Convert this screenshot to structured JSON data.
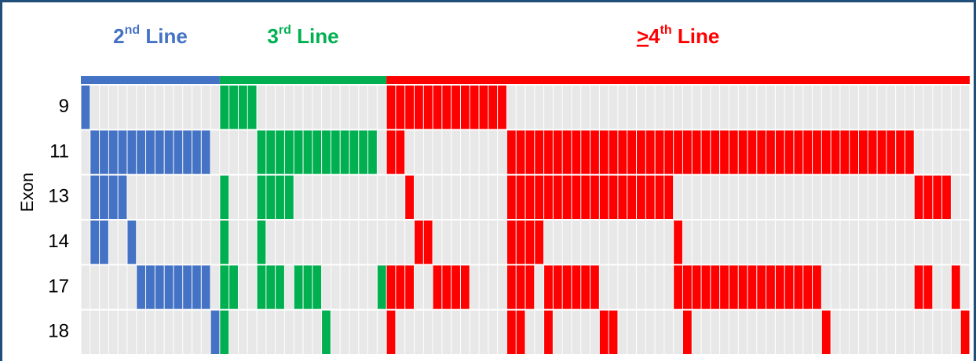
{
  "chart_data": {
    "type": "heatmap",
    "y_label": "Exon",
    "xlim": [
      0,
      96
    ],
    "groups": [
      {
        "title_parts": [
          {
            "text": "2"
          },
          {
            "text": "nd",
            "sup": true
          },
          {
            "text": " Line"
          }
        ],
        "color": "#4472c4",
        "columns": 15
      },
      {
        "title_parts": [
          {
            "text": "3"
          },
          {
            "text": "rd",
            "sup": true
          },
          {
            "text": " Line"
          }
        ],
        "color": "#00b050",
        "columns": 18
      },
      {
        "title_parts": [
          {
            "text": ">",
            "underline": true
          },
          {
            "text": "4"
          },
          {
            "text": "th",
            "sup": true
          },
          {
            "text": " Line"
          }
        ],
        "color": "#ff0000",
        "columns": 63
      }
    ],
    "rows": [
      {
        "label": "9",
        "cells": [
          0,
          15,
          16,
          17,
          18,
          33,
          34,
          35,
          36,
          37,
          38,
          39,
          40,
          41,
          42,
          43,
          44,
          45
        ]
      },
      {
        "label": "11",
        "cells": [
          1,
          2,
          3,
          4,
          5,
          6,
          7,
          8,
          9,
          10,
          11,
          12,
          13,
          19,
          20,
          21,
          22,
          23,
          24,
          25,
          26,
          27,
          28,
          29,
          30,
          31,
          33,
          34,
          46,
          47,
          48,
          49,
          50,
          51,
          52,
          53,
          54,
          55,
          56,
          57,
          58,
          59,
          60,
          61,
          62,
          63,
          64,
          65,
          66,
          67,
          68,
          69,
          70,
          71,
          72,
          73,
          74,
          75,
          76,
          77,
          78,
          79,
          80,
          81,
          82,
          83,
          84,
          85,
          86,
          87,
          88,
          89
        ]
      },
      {
        "label": "13",
        "cells": [
          1,
          2,
          3,
          4,
          15,
          19,
          20,
          21,
          22,
          35,
          46,
          47,
          48,
          49,
          50,
          51,
          52,
          53,
          54,
          55,
          56,
          57,
          58,
          59,
          60,
          61,
          62,
          63,
          90,
          91,
          92,
          93
        ]
      },
      {
        "label": "14",
        "cells": [
          1,
          2,
          5,
          15,
          19,
          36,
          37,
          46,
          47,
          48,
          49,
          64
        ]
      },
      {
        "label": "17",
        "cells": [
          6,
          7,
          8,
          9,
          10,
          11,
          12,
          13,
          15,
          16,
          19,
          20,
          21,
          23,
          24,
          25,
          32,
          33,
          34,
          35,
          38,
          39,
          40,
          41,
          46,
          47,
          48,
          50,
          51,
          52,
          53,
          54,
          55,
          64,
          65,
          66,
          67,
          68,
          69,
          70,
          71,
          72,
          73,
          74,
          75,
          76,
          77,
          78,
          79,
          90,
          91,
          94
        ]
      },
      {
        "label": "18",
        "cells": [
          14,
          15,
          26,
          33,
          46,
          47,
          50,
          56,
          57,
          65,
          80,
          95
        ]
      }
    ]
  }
}
